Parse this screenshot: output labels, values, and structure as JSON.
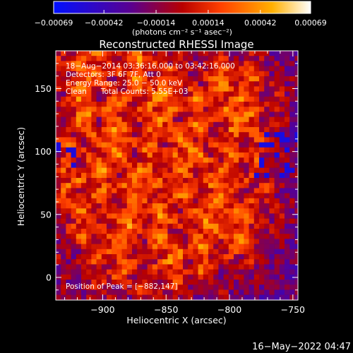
{
  "chart_data": {
    "type": "heatmap",
    "title": "Reconstructed RHESSI Image",
    "xlabel": "Heliocentric X (arcsec)",
    "ylabel": "Heliocentric Y (arcsec)",
    "xlim": [
      -937,
      -746
    ],
    "ylim": [
      -18,
      180
    ],
    "x_ticks": [
      -900,
      -850,
      -800,
      -750
    ],
    "x_tick_labels": [
      "−900",
      "−850",
      "−800",
      "−750"
    ],
    "y_ticks": [
      0,
      50,
      100,
      150
    ],
    "y_tick_labels": [
      "0",
      "50",
      "100",
      "150"
    ],
    "colorbar": {
      "range": [
        -0.00069,
        0.00069
      ],
      "ticks": [
        -0.00069,
        -0.00042,
        -0.00014,
        0.00014,
        0.00042,
        0.00069
      ],
      "tick_labels": [
        "−0.00069",
        "−0.00042",
        "−0.00014",
        "0.00014",
        "0.00042",
        "0.00069"
      ],
      "unit": "(photons cm⁻² s⁻¹ asec⁻²)",
      "colors": [
        "#0010ff",
        "#5a0090",
        "#b80000",
        "#ff4000",
        "#ffb000",
        "#ffffff"
      ]
    },
    "annotations": [
      "18−Aug−2014 03:36:16.000 to 03:42:16.000",
      "Detectors: 3F 6F 7F, Att 0",
      "Energy Range: 25.0 − 50.0 keV",
      "Clean      Total Counts: 5.55E+03"
    ],
    "peak_label": "Position of Peak = [−882,147]",
    "grid": false
  },
  "timestamp": "16−May−2022 04:47"
}
